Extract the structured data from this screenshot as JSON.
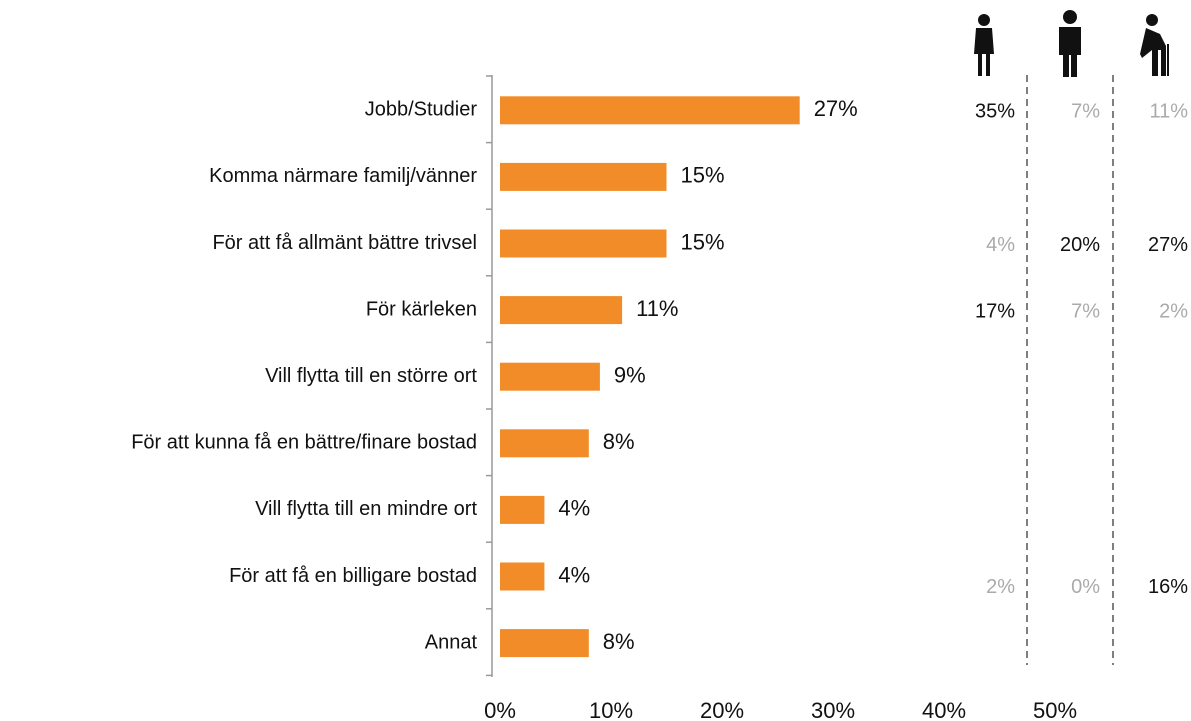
{
  "chart_data": {
    "type": "bar",
    "orientation": "horizontal",
    "categories": [
      "Jobb/Studier",
      "Komma närmare familj/vänner",
      "För att få allmänt bättre trivsel",
      "För kärleken",
      "Vill flytta till en större ort",
      "För att kunna få en bättre/finare bostad",
      "Vill flytta till en mindre ort",
      "För att få en billigare bostad",
      "Annat"
    ],
    "values": [
      27,
      15,
      15,
      11,
      9,
      8,
      4,
      4,
      8
    ],
    "value_labels": [
      "27%",
      "15%",
      "15%",
      "11%",
      "9%",
      "8%",
      "4%",
      "4%",
      "8%"
    ],
    "color": "#f28c28",
    "xlim": [
      0,
      50
    ],
    "xticks": [
      {
        "value": 0,
        "label": "0%"
      },
      {
        "value": 10,
        "label": "10%"
      },
      {
        "value": 20,
        "label": "20%"
      },
      {
        "value": 30,
        "label": "30%"
      },
      {
        "value": 40,
        "label": "40%"
      },
      {
        "value": 50,
        "label": "50%"
      }
    ],
    "groups": [
      {
        "values": [
          35,
          null,
          4,
          17,
          null,
          null,
          null,
          2,
          null
        ],
        "value_labels": [
          "35%",
          null,
          "4%",
          "17%",
          null,
          null,
          null,
          "2%",
          null
        ],
        "colors": [
          "#111111",
          null,
          "#aaaaaa",
          "#111111",
          null,
          null,
          null,
          "#aaaaaa",
          null
        ]
      },
      {
        "values": [
          7,
          null,
          20,
          7,
          null,
          null,
          null,
          0,
          null
        ],
        "value_labels": [
          "7%",
          null,
          "20%",
          "7%",
          null,
          null,
          null,
          "0%",
          null
        ],
        "colors": [
          "#aaaaaa",
          null,
          "#111111",
          "#aaaaaa",
          null,
          null,
          null,
          "#aaaaaa",
          null
        ]
      },
      {
        "values": [
          11,
          null,
          27,
          2,
          null,
          null,
          null,
          16,
          null
        ],
        "value_labels": [
          "11%",
          null,
          "27%",
          "2%",
          null,
          null,
          null,
          "16%",
          null
        ],
        "colors": [
          "#aaaaaa",
          null,
          "#111111",
          "#aaaaaa",
          null,
          null,
          null,
          "#111111",
          null
        ]
      }
    ]
  }
}
